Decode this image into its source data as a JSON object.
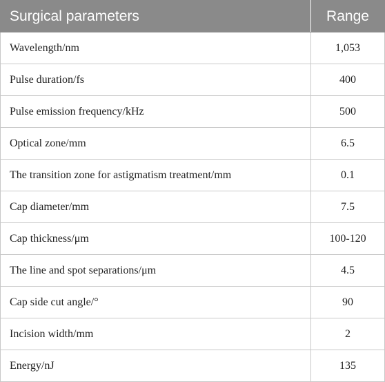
{
  "table": {
    "headers": {
      "parameter": "Surgical parameters",
      "range": "Range"
    },
    "rows": [
      {
        "parameter": "Wavelength/nm",
        "range": "1,053"
      },
      {
        "parameter": "Pulse duration/fs",
        "range": "400"
      },
      {
        "parameter": "Pulse emission frequency/kHz",
        "range": "500"
      },
      {
        "parameter": "Optical zone/mm",
        "range": "6.5"
      },
      {
        "parameter": "The transition zone for astigmatism treatment/mm",
        "range": "0.1"
      },
      {
        "parameter": "Cap diameter/mm",
        "range": "7.5"
      },
      {
        "parameter": "Cap thickness/μm",
        "range": "100-120"
      },
      {
        "parameter": "The line and spot separations/μm",
        "range": "4.5"
      },
      {
        "parameter": "Cap side cut angle/°",
        "range": "90"
      },
      {
        "parameter": "Incision width/mm",
        "range": "2"
      },
      {
        "parameter": "Energy/nJ",
        "range": "135"
      }
    ]
  },
  "colors": {
    "header_background": "#8a8a8a",
    "header_text": "#ffffff",
    "grid": "#c8c8c8"
  }
}
